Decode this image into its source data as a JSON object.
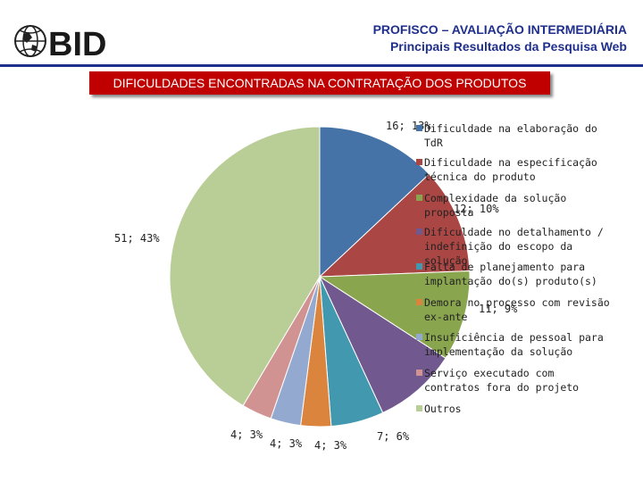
{
  "header": {
    "logo_text": "BID",
    "line1": "PROFISCO – AVALIAÇÃO INTERMEDIÁRIA",
    "line2": "Principais Resultados da Pesquisa Web"
  },
  "section_title": "DIFICULDADES ENCONTRADAS NA CONTRATAÇÃO DOS PRODUTOS",
  "chart_data": {
    "type": "pie",
    "legend_position": "right",
    "series": [
      {
        "name": "Dificuldade na elaboração do TdR",
        "value": 16,
        "percent": 13,
        "label": "16; 13%",
        "color": "#4572a7"
      },
      {
        "name": "Dificuldade na especificação técnica do produto",
        "value": 14,
        "percent": 12,
        "label": "",
        "color": "#aa4643"
      },
      {
        "name": "Complexidade da solução proposta",
        "value": 12,
        "percent": 10,
        "label": "12; 10%",
        "color": "#89a54e"
      },
      {
        "name": "Dificuldade no detalhamento / indefinição do escopo da solução",
        "value": 11,
        "percent": 9,
        "label": "11; 9%",
        "color": "#71588f"
      },
      {
        "name": "Falta de planejamento para implantação do(s) produto(s)",
        "value": 7,
        "percent": 6,
        "label": "7; 6%",
        "color": "#4198af"
      },
      {
        "name": "Demora no processo com revisão ex-ante",
        "value": 4,
        "percent": 3,
        "label": "4; 3%",
        "color": "#db843d"
      },
      {
        "name": "Insuficiência de pessoal para implementação da solução",
        "value": 4,
        "percent": 3,
        "label": "4; 3%",
        "color": "#93a9cf"
      },
      {
        "name": "Serviço executado com contratos fora do projeto",
        "value": 4,
        "percent": 3,
        "label": "4; 3%",
        "color": "#d19392"
      },
      {
        "name": "Outros",
        "value": 51,
        "percent": 43,
        "label": "51; 43%",
        "color": "#b9cd96"
      }
    ]
  }
}
